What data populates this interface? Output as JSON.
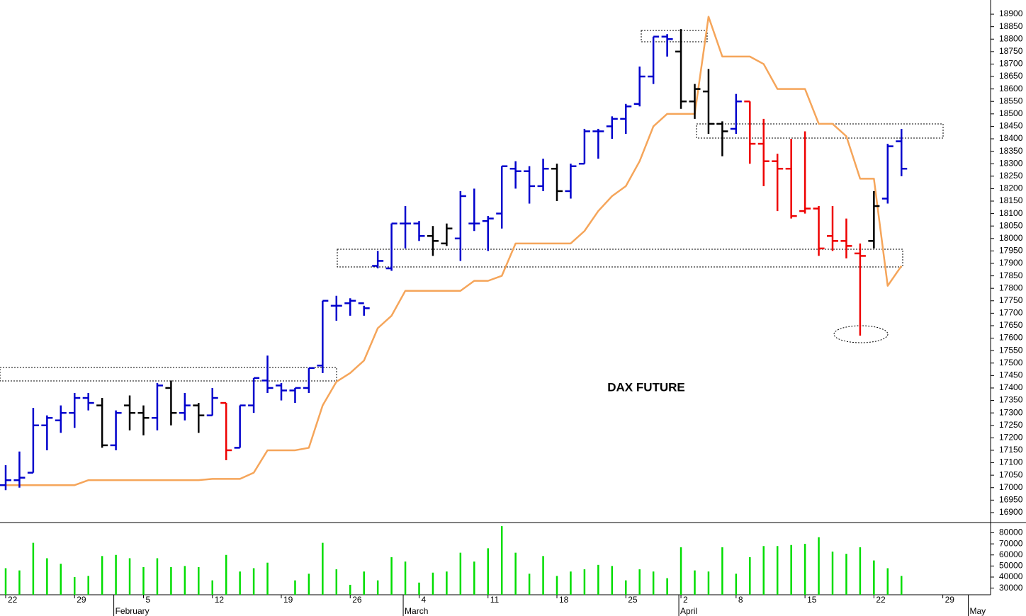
{
  "chart_data": {
    "type": "ohlc",
    "title": "DAX FUTURE",
    "categories": [
      "22",
      null,
      null,
      null,
      null,
      "29",
      null,
      null,
      null,
      null,
      "5",
      null,
      null,
      null,
      null,
      "12",
      null,
      null,
      null,
      null,
      "19",
      null,
      null,
      null,
      null,
      "26",
      null,
      null,
      null,
      null,
      "4",
      null,
      null,
      null,
      null,
      "11",
      null,
      null,
      null,
      null,
      "18",
      null,
      null,
      null,
      null,
      "25",
      null,
      null,
      null,
      "2",
      null,
      null,
      null,
      "8",
      null,
      null,
      null,
      null,
      "15",
      null,
      null,
      null,
      null,
      "22",
      null,
      null,
      null,
      null,
      "29",
      null,
      null
    ],
    "month_labels": [
      null,
      null,
      null,
      null,
      null,
      null,
      null,
      null,
      "February",
      null,
      null,
      null,
      null,
      null,
      null,
      null,
      null,
      null,
      null,
      null,
      null,
      null,
      null,
      null,
      null,
      null,
      null,
      null,
      null,
      "March",
      null,
      null,
      null,
      null,
      null,
      null,
      null,
      null,
      null,
      null,
      null,
      null,
      null,
      null,
      null,
      null,
      null,
      null,
      null,
      "April",
      null,
      null,
      null,
      null,
      null,
      null,
      null,
      null,
      null,
      null,
      null,
      null,
      null,
      null,
      null,
      null,
      null,
      null,
      null,
      null,
      "May"
    ],
    "open": [
      17010,
      17030,
      17060,
      17250,
      17270,
      17300,
      17360,
      17330,
      17170,
      17330,
      17300,
      17280,
      17400,
      17300,
      17330,
      17290,
      17340,
      17160,
      17330,
      17430,
      17410,
      17390,
      17400,
      17490,
      17730,
      17740,
      17740,
      17890,
      17880,
      18060,
      18060,
      18010,
      17980,
      18000,
      18060,
      18070,
      18100,
      18280,
      18270,
      18210,
      18280,
      18190,
      18300,
      18430,
      18450,
      18480,
      18540,
      18650,
      18810,
      18750,
      18550,
      18590,
      18460,
      18440,
      18550,
      18380,
      18310,
      18280,
      18110,
      18120,
      18010,
      17990,
      17940,
      17990,
      18160,
      18390,
      null,
      null,
      null,
      null,
      null
    ],
    "high": [
      17090,
      17145,
      17320,
      17290,
      17330,
      17380,
      17380,
      17360,
      17310,
      17370,
      17330,
      17420,
      17430,
      17380,
      17340,
      17400,
      17340,
      17330,
      17440,
      17530,
      17420,
      17400,
      17480,
      17750,
      17770,
      17760,
      17730,
      17950,
      18060,
      18130,
      18070,
      18050,
      18060,
      18190,
      18200,
      18090,
      18290,
      18310,
      18290,
      18320,
      18300,
      18300,
      18440,
      18440,
      18490,
      18540,
      18690,
      18810,
      18820,
      18840,
      18620,
      18680,
      18470,
      18580,
      18550,
      18480,
      18340,
      18400,
      18430,
      18130,
      18130,
      18080,
      17980,
      18190,
      18380,
      18440,
      null,
      null,
      null,
      null,
      null
    ],
    "low": [
      16990,
      17000,
      17060,
      17150,
      17220,
      17240,
      17310,
      17160,
      17150,
      17230,
      17210,
      17230,
      17250,
      17270,
      17220,
      17290,
      17110,
      17160,
      17300,
      17380,
      17350,
      17340,
      17380,
      17460,
      17670,
      17690,
      17690,
      17880,
      17870,
      17960,
      17990,
      17930,
      17970,
      17910,
      18030,
      17950,
      18040,
      18200,
      18140,
      18190,
      18150,
      18160,
      18300,
      18320,
      18400,
      18420,
      18530,
      18620,
      18730,
      18520,
      18480,
      18420,
      18330,
      18420,
      18300,
      18210,
      18110,
      18080,
      18100,
      17930,
      17950,
      17920,
      17610,
      17960,
      18140,
      18250,
      null,
      null,
      null,
      null,
      null
    ],
    "close": [
      17030,
      17040,
      17250,
      17280,
      17300,
      17360,
      17340,
      17170,
      17300,
      17300,
      17280,
      17410,
      17300,
      17330,
      17290,
      17360,
      17150,
      17330,
      17440,
      17400,
      17390,
      17400,
      17480,
      17750,
      17730,
      17750,
      17720,
      17910,
      18060,
      18060,
      18010,
      17990,
      18040,
      18170,
      18060,
      18080,
      18290,
      18270,
      18210,
      18280,
      18190,
      18290,
      18430,
      18430,
      18480,
      18530,
      18650,
      18810,
      18800,
      18550,
      18600,
      18460,
      18430,
      18550,
      18380,
      18310,
      18280,
      18090,
      18120,
      17960,
      17990,
      17970,
      17930,
      18130,
      18370,
      18280,
      null,
      null,
      null,
      null,
      null
    ],
    "colors": [
      "#0000cc",
      "#0000cc",
      "#0000cc",
      "#0000cc",
      "#0000cc",
      "#0000cc",
      "#0000cc",
      "#000000",
      "#0000cc",
      "#000000",
      "#000000",
      "#0000cc",
      "#000000",
      "#0000cc",
      "#000000",
      "#0000cc",
      "#ee0000",
      "#0000cc",
      "#0000cc",
      "#0000cc",
      "#0000cc",
      "#0000cc",
      "#0000cc",
      "#0000cc",
      "#0000cc",
      "#0000cc",
      "#0000cc",
      "#0000cc",
      "#0000cc",
      "#0000cc",
      "#0000cc",
      "#000000",
      "#000000",
      "#0000cc",
      "#0000cc",
      "#0000cc",
      "#0000cc",
      "#0000cc",
      "#0000cc",
      "#0000cc",
      "#000000",
      "#0000cc",
      "#0000cc",
      "#0000cc",
      "#0000cc",
      "#0000cc",
      "#0000cc",
      "#0000cc",
      "#0000cc",
      "#000000",
      "#000000",
      "#000000",
      "#000000",
      "#0000cc",
      "#ee0000",
      "#ee0000",
      "#ee0000",
      "#ee0000",
      "#ee0000",
      "#ee0000",
      "#ee0000",
      "#ee0000",
      "#ee0000",
      "#000000",
      "#0000cc",
      "#0000cc",
      null,
      null,
      null,
      null,
      null
    ],
    "ylim": [
      16860,
      18957
    ],
    "yticks": [
      16900,
      16950,
      17000,
      17050,
      17100,
      17150,
      17200,
      17250,
      17300,
      17350,
      17400,
      17450,
      17500,
      17550,
      17600,
      17650,
      17700,
      17750,
      17800,
      17850,
      17900,
      17950,
      18000,
      18050,
      18100,
      18150,
      18200,
      18250,
      18300,
      18350,
      18400,
      18450,
      18500,
      18550,
      18600,
      18650,
      18700,
      18750,
      18800,
      18850,
      18900
    ],
    "stop_line": {
      "color": "#f5a55a",
      "values": [
        17010,
        17010,
        17010,
        17010,
        17010,
        17010,
        17030,
        17030,
        17030,
        17030,
        17030,
        17030,
        17030,
        17030,
        17030,
        17035,
        17035,
        17035,
        17060,
        17150,
        17150,
        17150,
        17160,
        17330,
        17425,
        17460,
        17510,
        17640,
        17690,
        17790,
        17790,
        17790,
        17790,
        17790,
        17830,
        17830,
        17850,
        17980,
        17980,
        17980,
        17980,
        17980,
        18030,
        18110,
        18170,
        18210,
        18310,
        18450,
        18500,
        18500,
        18500,
        18890,
        18730,
        18730,
        18730,
        18700,
        18600,
        18600,
        18600,
        18460,
        18460,
        18410,
        18240,
        18240,
        17810,
        17890,
        null,
        null,
        null,
        null,
        null
      ]
    },
    "volume": {
      "color": "#00dd00",
      "ylim": [
        24000,
        88000
      ],
      "yticks": [
        30000,
        40000,
        50000,
        60000,
        70000,
        80000
      ],
      "values": [
        48000,
        46000,
        71000,
        57000,
        52000,
        40000,
        41000,
        59000,
        60000,
        57000,
        49000,
        57000,
        49000,
        50000,
        49000,
        37000,
        60000,
        45000,
        48000,
        53000,
        null,
        37000,
        43000,
        71000,
        47000,
        33000,
        45000,
        37000,
        58000,
        54000,
        35000,
        44000,
        45000,
        62000,
        54000,
        66000,
        86000,
        62000,
        43000,
        59000,
        41000,
        45000,
        47000,
        51000,
        50000,
        37000,
        47000,
        45000,
        39000,
        67000,
        46000,
        45000,
        67000,
        43000,
        58000,
        68000,
        68000,
        69000,
        70000,
        76000,
        63000,
        61000,
        67000,
        55000,
        48000,
        41000,
        null,
        null,
        null,
        null,
        null
      ]
    }
  }
}
